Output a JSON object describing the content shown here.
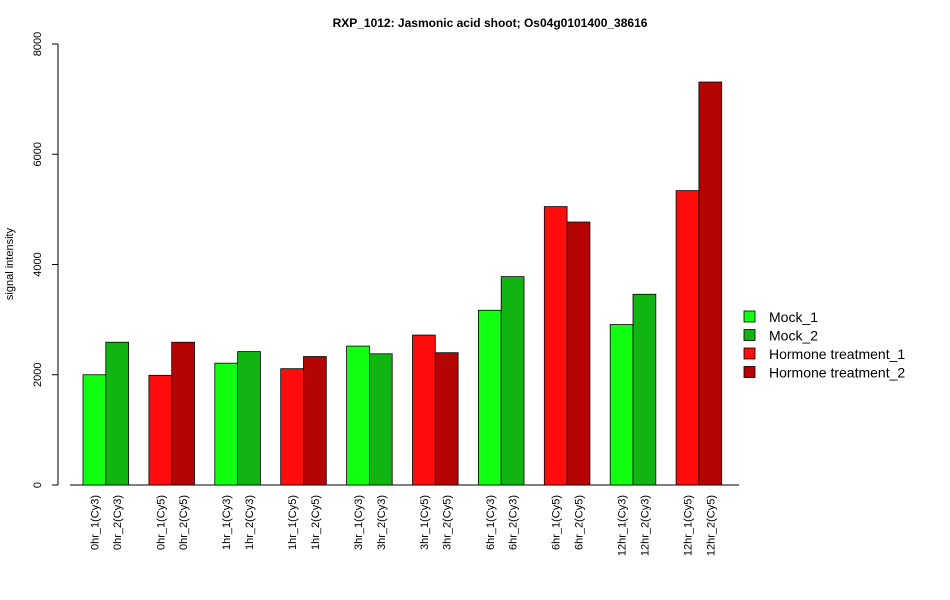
{
  "chart_data": {
    "type": "bar",
    "title": "RXP_1012: Jasmonic acid shoot; Os04g0101400_38616",
    "ylabel": "signal intensity",
    "xlabel": "",
    "ylim": [
      0,
      8000
    ],
    "yticks": [
      0,
      2000,
      4000,
      6000,
      8000
    ],
    "grid": false,
    "legend_position": "right",
    "legend": [
      {
        "name": "Mock_1",
        "color": "#11ff11"
      },
      {
        "name": "Mock_2",
        "color": "#11b511"
      },
      {
        "name": "Hormone treatment_1",
        "color": "#ff0d0d"
      },
      {
        "name": "Hormone treatment_2",
        "color": "#b50404"
      }
    ],
    "groups": [
      {
        "bars": [
          {
            "label": "0hr_1(Cy3)",
            "value": 2000,
            "series": 0
          },
          {
            "label": "0hr_2(Cy3)",
            "value": 2590,
            "series": 1
          }
        ]
      },
      {
        "bars": [
          {
            "label": "0hr_1(Cy5)",
            "value": 1990,
            "series": 2
          },
          {
            "label": "0hr_2(Cy5)",
            "value": 2590,
            "series": 3
          }
        ]
      },
      {
        "bars": [
          {
            "label": "1hr_1(Cy3)",
            "value": 2210,
            "series": 0
          },
          {
            "label": "1hr_2(Cy3)",
            "value": 2420,
            "series": 1
          }
        ]
      },
      {
        "bars": [
          {
            "label": "1hr_1(Cy5)",
            "value": 2110,
            "series": 2
          },
          {
            "label": "1hr_2(Cy5)",
            "value": 2330,
            "series": 3
          }
        ]
      },
      {
        "bars": [
          {
            "label": "3hr_1(Cy3)",
            "value": 2520,
            "series": 0
          },
          {
            "label": "3hr_2(Cy3)",
            "value": 2380,
            "series": 1
          }
        ]
      },
      {
        "bars": [
          {
            "label": "3hr_1(Cy5)",
            "value": 2720,
            "series": 2
          },
          {
            "label": "3hr_2(Cy5)",
            "value": 2400,
            "series": 3
          }
        ]
      },
      {
        "bars": [
          {
            "label": "6hr_1(Cy3)",
            "value": 3170,
            "series": 0
          },
          {
            "label": "6hr_2(Cy3)",
            "value": 3780,
            "series": 1
          }
        ]
      },
      {
        "bars": [
          {
            "label": "6hr_1(Cy5)",
            "value": 5050,
            "series": 2
          },
          {
            "label": "6hr_2(Cy5)",
            "value": 4770,
            "series": 3
          }
        ]
      },
      {
        "bars": [
          {
            "label": "12hr_1(Cy3)",
            "value": 2910,
            "series": 0
          },
          {
            "label": "12hr_2(Cy3)",
            "value": 3460,
            "series": 1
          }
        ]
      },
      {
        "bars": [
          {
            "label": "12hr_1(Cy5)",
            "value": 5340,
            "series": 2
          },
          {
            "label": "12hr_2(Cy5)",
            "value": 7310,
            "series": 3
          }
        ]
      }
    ]
  }
}
